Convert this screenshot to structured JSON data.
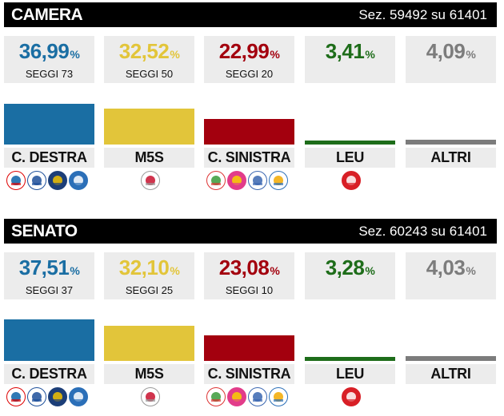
{
  "camera": {
    "title": "CAMERA",
    "sezioni": "Sez. 59492 su 61401",
    "parties": [
      {
        "pct": "36,99",
        "seggi": "SEGGI 73",
        "label": "C. DESTRA",
        "color": "#1a6ea3",
        "share": 36.99
      },
      {
        "pct": "32,52",
        "seggi": "SEGGI 50",
        "label": "M5S",
        "color": "#e2c53a",
        "share": 32.52
      },
      {
        "pct": "22,99",
        "seggi": "SEGGI 20",
        "label": "C. SINISTRA",
        "color": "#a3000e",
        "share": 22.99
      },
      {
        "pct": "3,41",
        "seggi": "",
        "label": "LEU",
        "color": "#1e6d1a",
        "share": 3.41
      },
      {
        "pct": "4,09",
        "seggi": "",
        "label": "ALTRI",
        "color": "#7c7c7c",
        "share": 4.09
      }
    ]
  },
  "senato": {
    "title": "SENATO",
    "sezioni": "Sez. 60243 su 61401",
    "parties": [
      {
        "pct": "37,51",
        "seggi": "SEGGI 37",
        "label": "C. DESTRA",
        "color": "#1a6ea3",
        "share": 37.51
      },
      {
        "pct": "32,10",
        "seggi": "SEGGI 25",
        "label": "M5S",
        "color": "#e2c53a",
        "share": 32.1
      },
      {
        "pct": "23,08",
        "seggi": "SEGGI 10",
        "label": "C. SINISTRA",
        "color": "#a3000e",
        "share": 23.08
      },
      {
        "pct": "3,28",
        "seggi": "",
        "label": "LEU",
        "color": "#1e6d1a",
        "share": 3.28
      },
      {
        "pct": "4,03",
        "seggi": "",
        "label": "ALTRI",
        "color": "#7c7c7c",
        "share": 4.03
      }
    ]
  },
  "percent_sign": "%",
  "logo_icons": [
    [
      "forza-italia-logo-icon",
      "lega-salvini-logo-icon",
      "fratelli-italia-logo-icon",
      "noi-con-italia-logo-icon"
    ],
    [
      "movimento-5-stelle-logo-icon"
    ],
    [
      "pd-logo-icon",
      "piu-europa-logo-icon",
      "italia-europa-insieme-logo-icon",
      "civica-popolare-logo-icon"
    ],
    [
      "liberi-e-uguali-logo-icon"
    ],
    []
  ]
}
